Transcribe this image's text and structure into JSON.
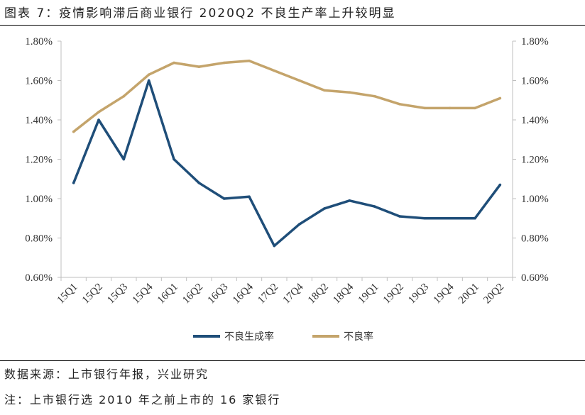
{
  "figure": {
    "title": "图表 7：疫情影响滞后商业银行 2020Q2 不良生产率上升较明显",
    "source": "数据来源：上市银行年报，兴业研究",
    "note": "注：上市银行选 2010 年之前上市的 16 家银行"
  },
  "chart_data": {
    "type": "line",
    "title": "",
    "xlabel": "",
    "ylabel": "",
    "categories": [
      "15Q1",
      "15Q2",
      "15Q3",
      "15Q4",
      "16Q1",
      "16Q2",
      "16Q3",
      "16Q4",
      "17Q2",
      "17Q4",
      "18Q2",
      "18Q4",
      "19Q1",
      "19Q2",
      "19Q3",
      "19Q4",
      "20Q1",
      "20Q2"
    ],
    "ylim": [
      0.6,
      1.8
    ],
    "y_ticks": [
      "0.60%",
      "0.80%",
      "1.00%",
      "1.20%",
      "1.40%",
      "1.60%",
      "1.80%"
    ],
    "y2_ticks": [
      "0.60%",
      "0.80%",
      "1.00%",
      "1.20%",
      "1.40%",
      "1.60%",
      "1.80%"
    ],
    "y_unit": "%",
    "grid": false,
    "legend_position": "bottom",
    "series": [
      {
        "name": "不良生成率",
        "color": "#1f4e79",
        "values": [
          1.08,
          1.4,
          1.2,
          1.6,
          1.2,
          1.08,
          1.0,
          1.01,
          0.76,
          0.87,
          0.95,
          0.99,
          0.96,
          0.91,
          0.9,
          0.9,
          0.9,
          1.07
        ]
      },
      {
        "name": "不良率",
        "color": "#c4a46b",
        "values": [
          1.34,
          1.44,
          1.52,
          1.63,
          1.69,
          1.67,
          1.69,
          1.7,
          1.65,
          1.6,
          1.55,
          1.54,
          1.52,
          1.48,
          1.46,
          1.46,
          1.46,
          1.51
        ]
      }
    ]
  }
}
